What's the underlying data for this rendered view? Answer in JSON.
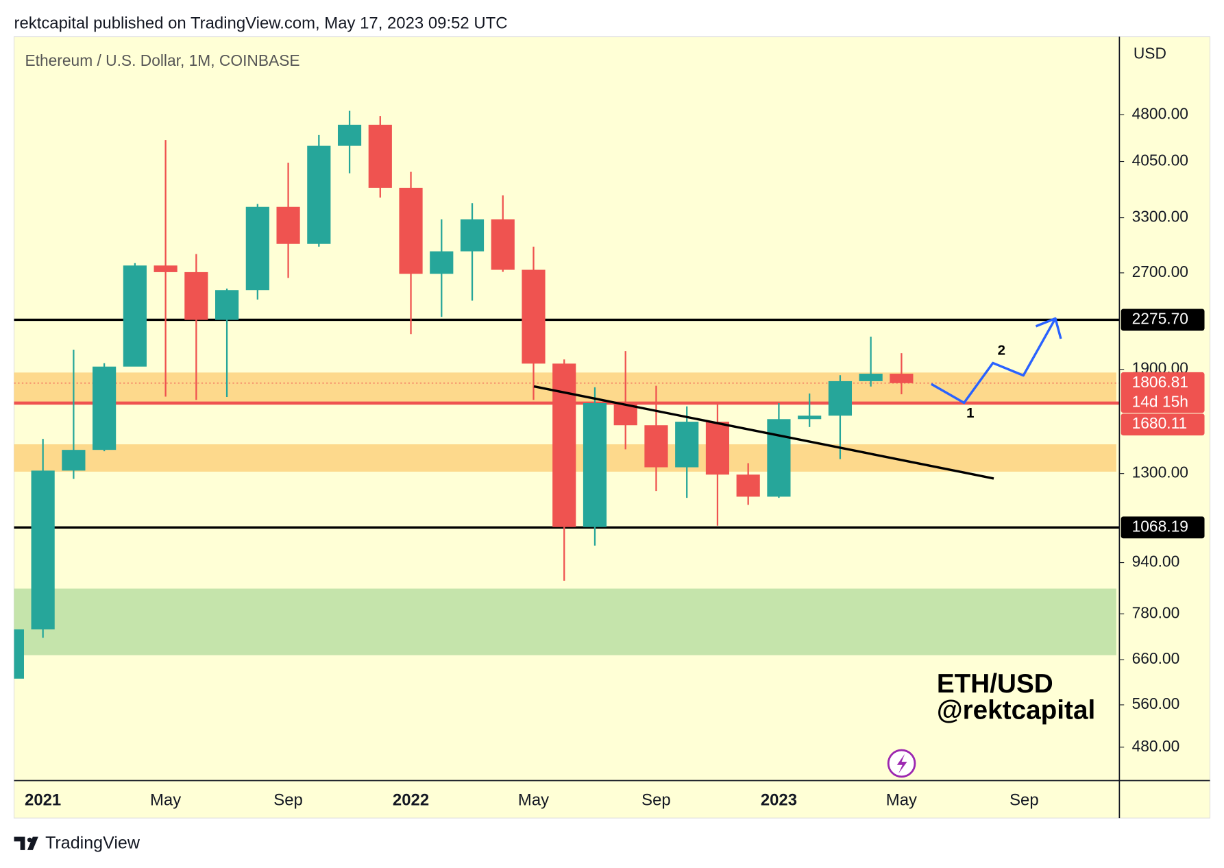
{
  "header": {
    "published": "rektcapital published on TradingView.com, May 17, 2023 09:52 UTC"
  },
  "footer": {
    "brand": "TradingView"
  },
  "chart_data": {
    "type": "candlestick",
    "title": "Ethereum / U.S. Dollar, 1M, COINBASE",
    "y_axis_label": "USD",
    "log_scale": true,
    "grid": false,
    "up_color": "#26a69a",
    "down_color": "#ef5350",
    "categories": [
      null,
      "2021",
      null,
      null,
      null,
      "May",
      null,
      null,
      null,
      "Sep",
      null,
      null,
      null,
      "2022",
      null,
      null,
      null,
      "May",
      null,
      null,
      null,
      "Sep",
      null,
      null,
      null,
      "2023",
      null,
      null,
      null,
      "May",
      null,
      null,
      null,
      "Sep",
      null,
      null,
      null
    ],
    "open": [
      616,
      737,
      1314,
      1417,
      1919,
      2773,
      2707,
      2275,
      2535,
      3433,
      3000,
      4288,
      4630,
      3680,
      2690,
      2920,
      3280,
      2730,
      1940,
      1070,
      1680,
      1550,
      1330,
      1570,
      1295,
      1195,
      1585,
      1605,
      1820,
      1870,
      null,
      null,
      null,
      null,
      null,
      null,
      null
    ],
    "high": [
      755,
      1475,
      2041,
      1943,
      2797,
      4380,
      2891,
      2550,
      3470,
      4030,
      4460,
      4870,
      4780,
      3900,
      3280,
      3480,
      3580,
      2970,
      1970,
      1780,
      2030,
      1790,
      1660,
      1680,
      1350,
      1680,
      1740,
      1860,
      2140,
      2015,
      null,
      null,
      null,
      null,
      null,
      null,
      null
    ],
    "low": [
      566,
      715,
      1275,
      1410,
      1920,
      1720,
      1700,
      1718,
      2450,
      2650,
      2970,
      3880,
      3550,
      2160,
      2300,
      2440,
      2710,
      1700,
      880,
      1000,
      1420,
      1220,
      1190,
      1075,
      1160,
      1190,
      1540,
      1370,
      1785,
      1735,
      null,
      null,
      null,
      null,
      null,
      null,
      null
    ],
    "close": [
      737,
      1314,
      1417,
      1919,
      2773,
      2707,
      2275,
      2535,
      3433,
      3000,
      4288,
      4630,
      3680,
      2690,
      2920,
      3280,
      2730,
      1940,
      1070,
      1680,
      1550,
      1330,
      1570,
      1295,
      1195,
      1585,
      1605,
      1820,
      1870,
      1807,
      null,
      null,
      null,
      null,
      null,
      null,
      null
    ],
    "ylim": [
      425,
      6380
    ],
    "yticks": [
      {
        "value": 480,
        "label": "480.00"
      },
      {
        "value": 560,
        "label": "560.00"
      },
      {
        "value": 660,
        "label": "660.00"
      },
      {
        "value": 780,
        "label": "780.00"
      },
      {
        "value": 940,
        "label": "940.00"
      },
      {
        "value": 1300,
        "label": "1300.00"
      },
      {
        "value": 1900,
        "label": "1900.00"
      },
      {
        "value": 2700,
        "label": "2700.00"
      },
      {
        "value": 3300,
        "label": "3300.00"
      },
      {
        "value": 4050,
        "label": "4050.00"
      },
      {
        "value": 4800,
        "label": "4800.00"
      }
    ],
    "zones": [
      {
        "range": [
          671,
          855
        ],
        "color": "#c5e4ab"
      },
      {
        "range": [
          1309,
          1446
        ],
        "color": "#fdd98c"
      },
      {
        "range": [
          1687,
          1878
        ],
        "color": "#fdd98c"
      }
    ],
    "price_lines": [
      {
        "value": 2275.7,
        "label": "2275.70",
        "color": "#000000",
        "width": 3,
        "dotted": false
      },
      {
        "value": 1806.81,
        "label": "1806.81",
        "sublabel": "14d 15h",
        "color": "#ef5350",
        "width": 1,
        "dotted": true
      },
      {
        "value": 1680.11,
        "label": "1680.11",
        "color": "#ef5350",
        "width": 4,
        "dotted": false
      },
      {
        "value": 1068.19,
        "label": "1068.19",
        "color": "#000000",
        "width": 3,
        "dotted": false
      }
    ],
    "annotations": {
      "point_1": "1",
      "point_2": "2",
      "watermark_1": "ETH/USD",
      "watermark_2": "@rektcapital"
    }
  }
}
